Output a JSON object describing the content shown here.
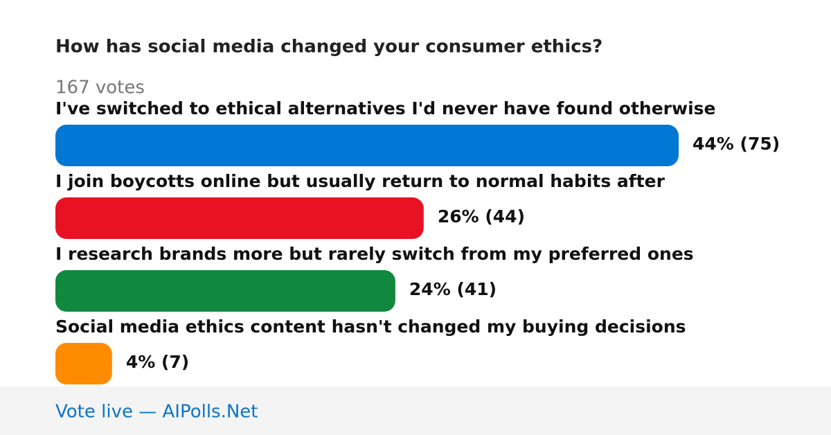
{
  "chart_data": {
    "type": "hbar",
    "title": "How has social media changed your consumer ethics?",
    "subtitle": "167 votes",
    "categories": [
      "I've switched to ethical alternatives I'd never have found otherwise",
      "I join boycotts online but usually return to normal habits after",
      "I research brands more but rarely switch from my preferred ones",
      "Social media ethics content hasn't changed my buying decisions"
    ],
    "values": [
      44,
      26,
      24,
      4
    ],
    "value_labels": [
      "44% (75)",
      "26% (44)",
      "24% (41)",
      "4% (7)"
    ],
    "colors": [
      "#0277d4",
      "#e81224",
      "#10893e",
      "#ff8c00"
    ]
  },
  "footer": {
    "link": "Vote live — AIPolls.Net"
  }
}
